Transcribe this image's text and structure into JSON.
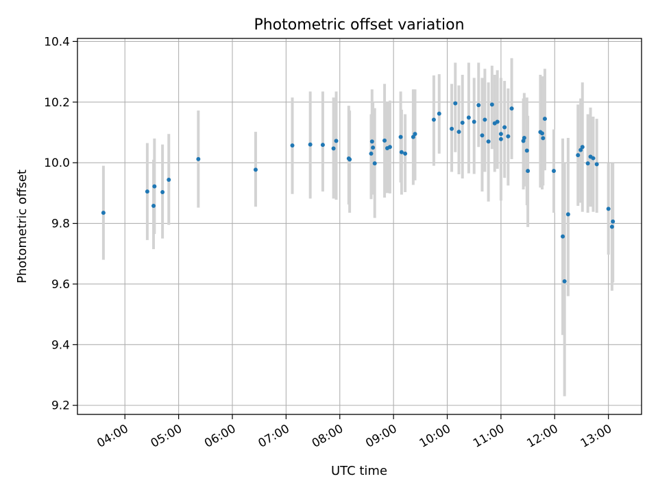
{
  "chart_data": {
    "type": "scatter",
    "title": "Photometric offset variation",
    "xlabel": "UTC time",
    "ylabel": "Photometric offset",
    "x_ticks": [
      "04:00",
      "05:00",
      "06:00",
      "07:00",
      "08:00",
      "09:00",
      "10:00",
      "11:00",
      "12:00",
      "13:00"
    ],
    "y_ticks": [
      "9.2",
      "9.4",
      "9.6",
      "9.8",
      "10.0",
      "10.2",
      "10.4"
    ],
    "xlim": [
      "03:07",
      "13:37"
    ],
    "ylim": [
      9.17,
      10.41
    ],
    "grid": true,
    "x": [
      "03:36",
      "04:25",
      "04:32",
      "04:33",
      "04:42",
      "04:49",
      "05:22",
      "06:26",
      "07:07",
      "07:27",
      "07:41",
      "07:53",
      "07:56",
      "08:10",
      "08:11",
      "08:35",
      "08:36",
      "08:37",
      "08:39",
      "08:50",
      "08:53",
      "08:56",
      "09:08",
      "09:09",
      "09:13",
      "09:22",
      "09:24",
      "09:45",
      "09:51",
      "10:05",
      "10:09",
      "10:13",
      "10:17",
      "10:24",
      "10:30",
      "10:35",
      "10:39",
      "10:42",
      "10:46",
      "10:50",
      "10:53",
      "10:56",
      "11:00",
      "11:00",
      "11:04",
      "11:08",
      "11:12",
      "11:25",
      "11:26",
      "11:29",
      "11:30",
      "11:44",
      "11:46",
      "11:47",
      "11:49",
      "11:59",
      "12:09",
      "12:11",
      "12:15",
      "12:26",
      "12:29",
      "12:31",
      "12:37",
      "12:40",
      "12:43",
      "12:47",
      "13:00",
      "13:04",
      "13:05"
    ],
    "series": [
      {
        "values": [
          9.835,
          9.905,
          9.858,
          9.922,
          9.903,
          9.944,
          10.012,
          9.977,
          10.057,
          10.06,
          10.059,
          10.047,
          10.072,
          10.014,
          10.011,
          10.03,
          10.07,
          10.05,
          9.998,
          10.073,
          10.048,
          10.052,
          10.085,
          10.035,
          10.03,
          10.085,
          10.095,
          10.142,
          10.162,
          10.112,
          10.196,
          10.102,
          10.132,
          10.149,
          10.135,
          10.19,
          10.09,
          10.142,
          10.07,
          10.192,
          10.13,
          10.135,
          10.095,
          10.078,
          10.117,
          10.087,
          10.179,
          10.072,
          10.082,
          10.04,
          9.973,
          10.101,
          10.097,
          10.081,
          10.145,
          9.973,
          9.757,
          9.609,
          9.83,
          10.025,
          10.042,
          10.052,
          9.998,
          10.02,
          10.015,
          9.995,
          9.848,
          9.789,
          9.806
        ],
        "err_low": [
          9.68,
          9.745,
          9.715,
          9.765,
          9.75,
          9.795,
          9.852,
          9.855,
          9.897,
          9.882,
          9.905,
          9.882,
          9.878,
          9.862,
          9.835,
          9.88,
          9.903,
          9.895,
          9.818,
          9.885,
          9.9,
          9.899,
          9.935,
          9.895,
          9.903,
          9.927,
          9.942,
          9.99,
          10.03,
          9.97,
          10.035,
          9.962,
          9.948,
          9.965,
          9.963,
          10.052,
          9.905,
          9.97,
          9.872,
          10.045,
          9.97,
          9.98,
          9.91,
          9.875,
          9.95,
          9.925,
          10.012,
          9.912,
          9.922,
          9.86,
          9.788,
          9.918,
          9.912,
          9.925,
          9.975,
          9.835,
          9.432,
          9.23,
          9.56,
          9.858,
          9.868,
          9.838,
          9.835,
          9.855,
          9.838,
          9.835,
          9.697,
          9.578,
          9.605
        ],
        "err_high": [
          9.99,
          10.065,
          10.01,
          10.08,
          10.06,
          10.095,
          10.172,
          10.102,
          10.215,
          10.235,
          10.235,
          10.215,
          10.235,
          10.188,
          10.172,
          10.16,
          10.242,
          10.2,
          10.18,
          10.26,
          10.2,
          10.205,
          10.235,
          10.175,
          10.16,
          10.242,
          10.242,
          10.288,
          10.292,
          10.26,
          10.33,
          10.255,
          10.29,
          10.33,
          10.28,
          10.33,
          10.28,
          10.31,
          10.265,
          10.32,
          10.29,
          10.305,
          10.28,
          10.275,
          10.27,
          10.245,
          10.345,
          10.212,
          10.23,
          10.215,
          10.155,
          10.29,
          10.285,
          10.26,
          10.31,
          10.11,
          10.08,
          10.0,
          10.082,
          10.192,
          10.212,
          10.265,
          10.16,
          10.182,
          10.152,
          10.145,
          10.0,
          9.998,
          10.0
        ]
      }
    ],
    "colors": {
      "marker": "#1f77b4",
      "errorbar": "#d3d3d3",
      "grid": "#b0b0b0"
    }
  }
}
